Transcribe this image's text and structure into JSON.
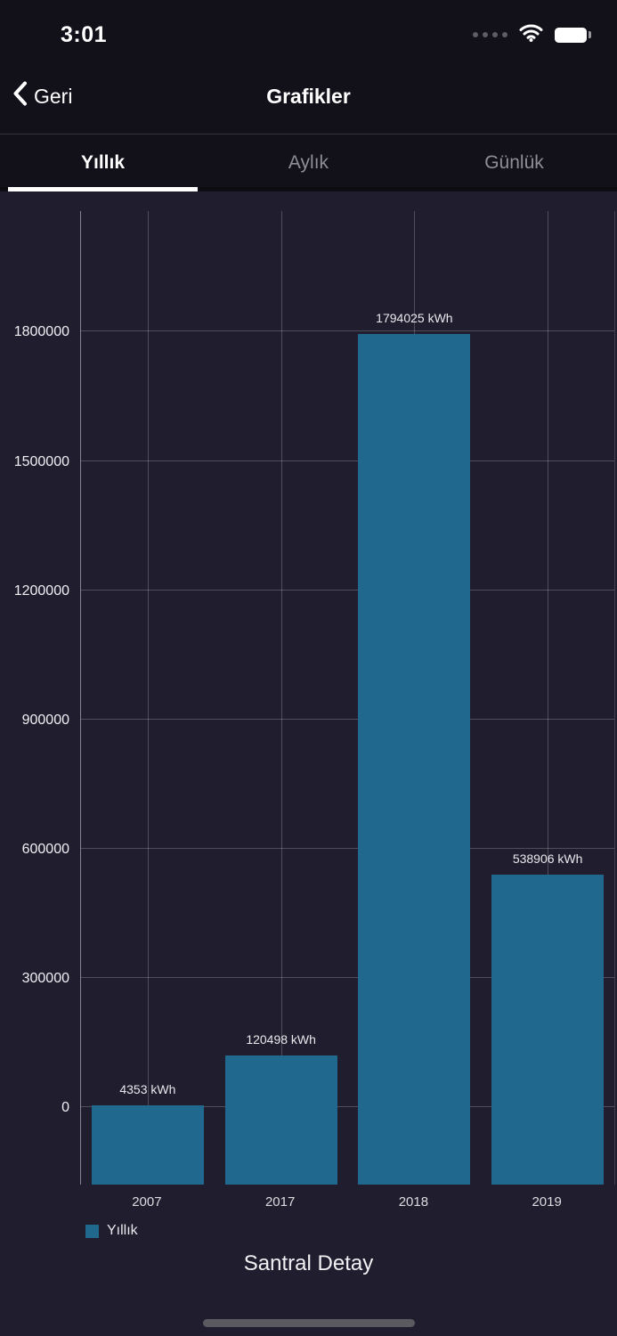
{
  "status_bar": {
    "time": "3:01"
  },
  "nav": {
    "back_label": "Geri",
    "title": "Grafikler"
  },
  "tabs": [
    {
      "label": "Yıllık",
      "active": true
    },
    {
      "label": "Aylık",
      "active": false
    },
    {
      "label": "Günlük",
      "active": false
    }
  ],
  "chart_data": {
    "type": "bar",
    "title": "Santral Detay",
    "categories": [
      "2007",
      "2017",
      "2018",
      "2019"
    ],
    "values": [
      4353,
      120498,
      1794025,
      538906
    ],
    "value_labels": [
      "4353 kWh",
      "120498 kWh",
      "1794025 kWh",
      "538906 kWh"
    ],
    "unit": "kWh",
    "y_ticks": [
      0,
      300000,
      600000,
      900000,
      1200000,
      1500000,
      1800000
    ],
    "ylim": [
      -180000,
      2080000
    ],
    "bar_color": "#21688e",
    "grid": true,
    "legend": [
      {
        "label": "Yıllık",
        "color": "#21688e"
      }
    ],
    "legend_position": "bottom-left"
  },
  "icons": {
    "back_chevron": "‹",
    "cellular_signal": "four-dots",
    "wifi": "arcs",
    "battery": "full"
  }
}
